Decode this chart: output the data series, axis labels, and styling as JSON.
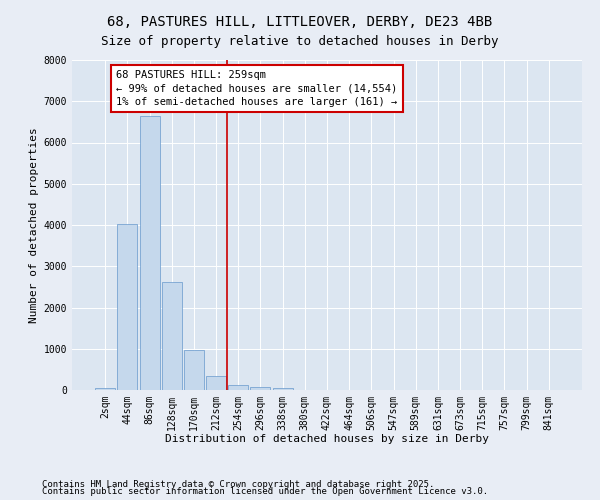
{
  "title_line1": "68, PASTURES HILL, LITTLEOVER, DERBY, DE23 4BB",
  "title_line2": "Size of property relative to detached houses in Derby",
  "xlabel": "Distribution of detached houses by size in Derby",
  "ylabel": "Number of detached properties",
  "categories": [
    "2sqm",
    "44sqm",
    "86sqm",
    "128sqm",
    "170sqm",
    "212sqm",
    "254sqm",
    "296sqm",
    "338sqm",
    "380sqm",
    "422sqm",
    "464sqm",
    "506sqm",
    "547sqm",
    "589sqm",
    "631sqm",
    "673sqm",
    "715sqm",
    "757sqm",
    "799sqm",
    "841sqm"
  ],
  "values": [
    50,
    4020,
    6640,
    2620,
    980,
    350,
    130,
    75,
    40,
    10,
    5,
    0,
    0,
    0,
    0,
    0,
    0,
    0,
    0,
    0,
    0
  ],
  "bar_color": "#c5d8ec",
  "bar_edge_color": "#6699cc",
  "vline_x": 5.5,
  "vline_color": "#cc0000",
  "annotation_text": "68 PASTURES HILL: 259sqm\n← 99% of detached houses are smaller (14,554)\n1% of semi-detached houses are larger (161) →",
  "annotation_box_color": "#cc0000",
  "annotation_bg": "#ffffff",
  "ylim": [
    0,
    8000
  ],
  "yticks": [
    0,
    1000,
    2000,
    3000,
    4000,
    5000,
    6000,
    7000,
    8000
  ],
  "background_color": "#e8edf5",
  "plot_bg_color": "#dce6f1",
  "footer_line1": "Contains HM Land Registry data © Crown copyright and database right 2025.",
  "footer_line2": "Contains public sector information licensed under the Open Government Licence v3.0.",
  "title_fontsize": 10,
  "subtitle_fontsize": 9,
  "axis_label_fontsize": 8,
  "tick_fontsize": 7,
  "annotation_fontsize": 7.5,
  "footer_fontsize": 6.5
}
